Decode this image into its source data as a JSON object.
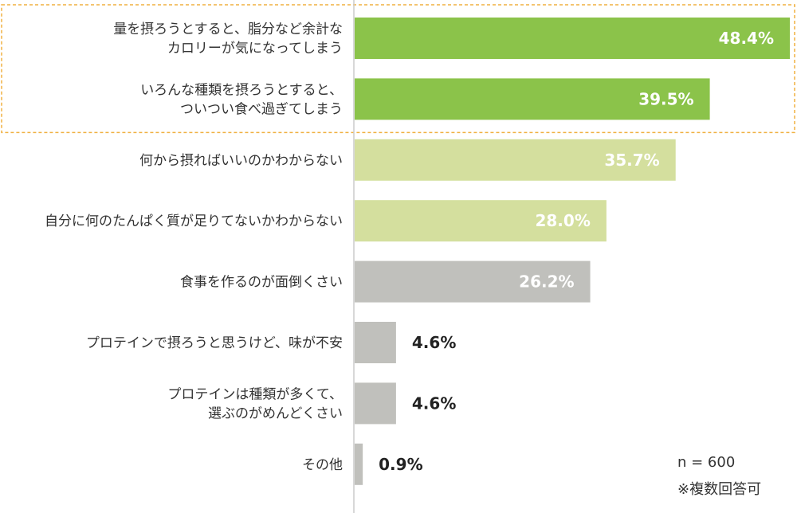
{
  "chart_data": {
    "type": "bar",
    "orientation": "horizontal",
    "categories": [
      [
        "量を摂ろうとすると、脂分など余計な",
        "カロリーが気になってしまう"
      ],
      [
        "いろんな種類を摂ろうとすると、",
        "ついつい食べ過ぎてしまう"
      ],
      [
        "何から摂ればいいのかわからない"
      ],
      [
        "自分に何のたんぱく質が足りてないかわからない"
      ],
      [
        "食事を作るのが面倒くさい"
      ],
      [
        "プロテインで摂ろうと思うけど、味が不安"
      ],
      [
        "プロテインは種類が多くて、",
        "選ぶのがめんどくさい"
      ],
      [
        "その他"
      ]
    ],
    "values": [
      48.4,
      39.5,
      35.7,
      28.0,
      26.2,
      4.6,
      4.6,
      0.9
    ],
    "value_labels": [
      "48.4%",
      "39.5%",
      "35.7%",
      "28.0%",
      "26.2%",
      "4.6%",
      "4.6%",
      "0.9%"
    ],
    "bar_colors": [
      "#8bc34a",
      "#8bc34a",
      "#d4df9e",
      "#d4df9e",
      "#c0c0bc",
      "#c0c0bc",
      "#c0c0bc",
      "#c0c0bc"
    ],
    "highlight_color": "#f0b040",
    "highlight_rows": [
      0,
      1
    ],
    "xlim": [
      0,
      48.4
    ],
    "grid": false,
    "axis_color": "#cccccc"
  },
  "notes": {
    "sample_size": "n = 600",
    "multiple_answers": "※複数回答可"
  }
}
